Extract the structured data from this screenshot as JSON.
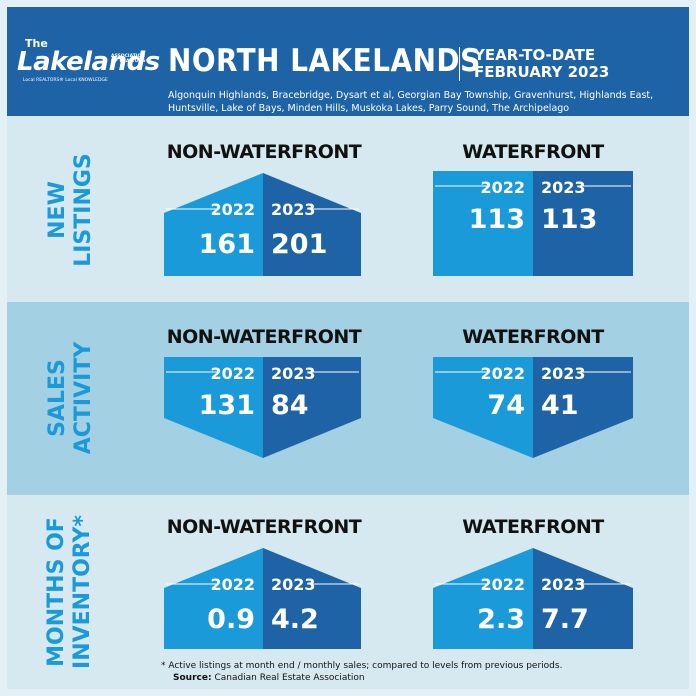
{
  "header": {
    "logo_the": "The",
    "logo_name": "Lakelands",
    "logo_sub": "ASSOCIATION OF REALTORS®",
    "logo_tag": "Local REALTORS® Local KNOWLEDGE",
    "title": "NORTH LAKELANDS",
    "ytd_line1": "YEAR-TO-DATE",
    "ytd_line2": "FEBRUARY 2023",
    "regions": "Algonquin Highlands, Bracebridge, Dysart et al, Georgian Bay Township, Gravenhurst, Highlands East, Huntsville, Lake of Bays, Minden Hills, Muskoka Lakes, Parry Sound, The Archipelago"
  },
  "rows": {
    "new_listings": {
      "line1": "NEW",
      "line2": "LISTINGS"
    },
    "sales_activity": {
      "line1": "SALES",
      "line2": "ACTIVITY"
    },
    "months_inventory": {
      "line1": "MONTHS OF",
      "line2": "INVENTORY*"
    }
  },
  "columns": {
    "non_waterfront": "NON-WATERFRONT",
    "waterfront": "WATERFRONT"
  },
  "footnote": {
    "note": "* Active listings at month end / monthly sales; compared to levels from previous periods.",
    "source_label": "Source:",
    "source": "Canadian Real Estate Association"
  },
  "colors": {
    "header": "#1d63a6",
    "light_blue": "#1a9ad9",
    "dark_blue": "#1d63a6",
    "band_light": "#d6e9f1",
    "band_mid": "#a3d0e2"
  },
  "chart_data": [
    {
      "type": "bar",
      "title": "NEW LISTINGS — NON-WATERFRONT",
      "categories": [
        "2022",
        "2023"
      ],
      "values": [
        161,
        201
      ],
      "shape": "house"
    },
    {
      "type": "bar",
      "title": "NEW LISTINGS — WATERFRONT",
      "categories": [
        "2022",
        "2023"
      ],
      "values": [
        113,
        113
      ],
      "shape": "flat"
    },
    {
      "type": "bar",
      "title": "SALES ACTIVITY — NON-WATERFRONT",
      "categories": [
        "2022",
        "2023"
      ],
      "values": [
        131,
        84
      ],
      "shape": "down"
    },
    {
      "type": "bar",
      "title": "SALES ACTIVITY — WATERFRONT",
      "categories": [
        "2022",
        "2023"
      ],
      "values": [
        74,
        41
      ],
      "shape": "down"
    },
    {
      "type": "bar",
      "title": "MONTHS OF INVENTORY — NON-WATERFRONT",
      "categories": [
        "2022",
        "2023"
      ],
      "values": [
        "0.9",
        "4.2"
      ],
      "shape": "house"
    },
    {
      "type": "bar",
      "title": "MONTHS OF INVENTORY — WATERFRONT",
      "categories": [
        "2022",
        "2023"
      ],
      "values": [
        "2.3",
        "7.7"
      ],
      "shape": "house"
    }
  ]
}
